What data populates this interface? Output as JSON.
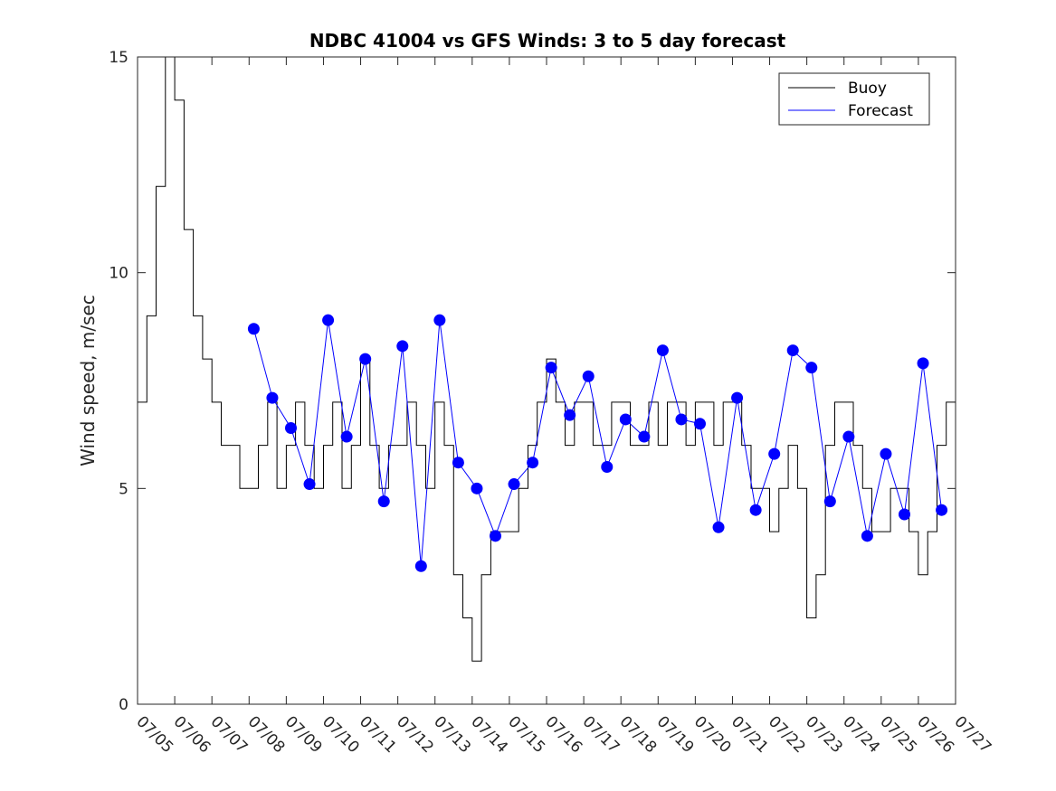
{
  "chart_data": {
    "type": "line",
    "title": "NDBC 41004 vs GFS Winds: 3 to 5 day forecast",
    "xlabel": "",
    "ylabel": "Wind speed, m/sec",
    "xlim": [
      "07/05",
      "07/27"
    ],
    "ylim": [
      0,
      15
    ],
    "x_ticks": [
      "07/05",
      "07/06",
      "07/07",
      "07/08",
      "07/09",
      "07/10",
      "07/11",
      "07/12",
      "07/13",
      "07/14",
      "07/15",
      "07/16",
      "07/17",
      "07/18",
      "07/19",
      "07/20",
      "07/21",
      "07/22",
      "07/23",
      "07/24",
      "07/25",
      "07/26",
      "07/27"
    ],
    "y_ticks": [
      "0",
      "5",
      "10",
      "15"
    ],
    "legend": {
      "placement": "top-right",
      "entries": [
        {
          "name": "Buoy",
          "color": "#000000"
        },
        {
          "name": "Forecast",
          "color": "#0000ff"
        }
      ]
    },
    "grid": false,
    "colors": {
      "buoy": "#000000",
      "forecast": "#0000ff",
      "markers": "#0000ff"
    },
    "series": [
      {
        "name": "Buoy",
        "x": [
          "07/05 00:00",
          "07/05 06:00",
          "07/05 12:00",
          "07/05 18:00",
          "07/06 00:00",
          "07/06 06:00",
          "07/06 12:00",
          "07/06 18:00",
          "07/07 00:00",
          "07/07 06:00",
          "07/07 12:00",
          "07/07 18:00",
          "07/08 00:00",
          "07/08 06:00",
          "07/08 12:00",
          "07/08 18:00",
          "07/09 00:00",
          "07/09 06:00",
          "07/09 12:00",
          "07/09 18:00",
          "07/10 00:00",
          "07/10 06:00",
          "07/10 12:00",
          "07/10 18:00",
          "07/11 00:00",
          "07/11 06:00",
          "07/11 12:00",
          "07/11 18:00",
          "07/12 00:00",
          "07/12 06:00",
          "07/12 12:00",
          "07/12 18:00",
          "07/13 00:00",
          "07/13 06:00",
          "07/13 12:00",
          "07/13 18:00",
          "07/14 00:00",
          "07/14 06:00",
          "07/14 12:00",
          "07/14 18:00",
          "07/15 00:00",
          "07/15 06:00",
          "07/15 12:00",
          "07/15 18:00",
          "07/16 00:00",
          "07/16 06:00",
          "07/16 12:00",
          "07/16 18:00",
          "07/17 00:00",
          "07/17 06:00",
          "07/17 12:00",
          "07/17 18:00",
          "07/18 00:00",
          "07/18 06:00",
          "07/18 12:00",
          "07/18 18:00",
          "07/19 00:00",
          "07/19 06:00",
          "07/19 12:00",
          "07/19 18:00",
          "07/20 00:00",
          "07/20 06:00",
          "07/20 12:00",
          "07/20 18:00",
          "07/21 00:00",
          "07/21 06:00",
          "07/21 12:00",
          "07/21 18:00",
          "07/22 00:00",
          "07/22 06:00",
          "07/22 12:00",
          "07/22 18:00",
          "07/23 00:00",
          "07/23 06:00",
          "07/23 12:00",
          "07/23 18:00",
          "07/24 00:00",
          "07/24 06:00",
          "07/24 12:00",
          "07/24 18:00",
          "07/25 00:00",
          "07/25 06:00",
          "07/25 12:00",
          "07/25 18:00",
          "07/26 00:00",
          "07/26 06:00",
          "07/26 12:00",
          "07/26 18:00",
          "07/27 00:00"
        ],
        "values": [
          7,
          9,
          12,
          15,
          14,
          11,
          9,
          8,
          7,
          6,
          6,
          5,
          5,
          6,
          7,
          5,
          6,
          7,
          6,
          5,
          6,
          7,
          5,
          6,
          8,
          6,
          5,
          6,
          6,
          7,
          6,
          5,
          7,
          6,
          3,
          2,
          1,
          3,
          4,
          4,
          4,
          5,
          6,
          7,
          8,
          7,
          6,
          7,
          7,
          6,
          6,
          7,
          7,
          6,
          6,
          7,
          6,
          7,
          7,
          6,
          7,
          7,
          6,
          7,
          7,
          6,
          5,
          5,
          4,
          5,
          6,
          5,
          2,
          3,
          6,
          7,
          7,
          6,
          5,
          4,
          4,
          5,
          5,
          4,
          3,
          4,
          6,
          7,
          6
        ]
      },
      {
        "name": "Forecast",
        "x": [
          "07/08 03:00",
          "07/08 15:00",
          "07/09 03:00",
          "07/09 15:00",
          "07/10 03:00",
          "07/10 15:00",
          "07/11 03:00",
          "07/11 15:00",
          "07/12 03:00",
          "07/12 15:00",
          "07/13 03:00",
          "07/13 15:00",
          "07/14 03:00",
          "07/14 15:00",
          "07/15 03:00",
          "07/15 15:00",
          "07/16 03:00",
          "07/16 15:00",
          "07/17 03:00",
          "07/17 15:00",
          "07/18 03:00",
          "07/18 15:00",
          "07/19 03:00",
          "07/19 15:00",
          "07/20 03:00",
          "07/20 15:00",
          "07/21 03:00",
          "07/21 15:00",
          "07/22 03:00",
          "07/22 15:00",
          "07/23 03:00",
          "07/23 15:00",
          "07/24 03:00",
          "07/24 15:00",
          "07/25 03:00",
          "07/25 15:00",
          "07/26 03:00",
          "07/26 15:00"
        ],
        "values": [
          8.7,
          7.1,
          6.4,
          5.1,
          8.9,
          6.2,
          8.0,
          4.7,
          8.3,
          3.2,
          8.9,
          5.6,
          5.0,
          3.9,
          5.1,
          5.6,
          7.8,
          6.7,
          7.6,
          5.5,
          6.6,
          6.2,
          8.2,
          6.6,
          6.5,
          4.1,
          7.1,
          4.5,
          5.8,
          8.2,
          7.8,
          4.7,
          6.2,
          3.9,
          5.8,
          4.4,
          7.9,
          4.5
        ]
      }
    ]
  }
}
